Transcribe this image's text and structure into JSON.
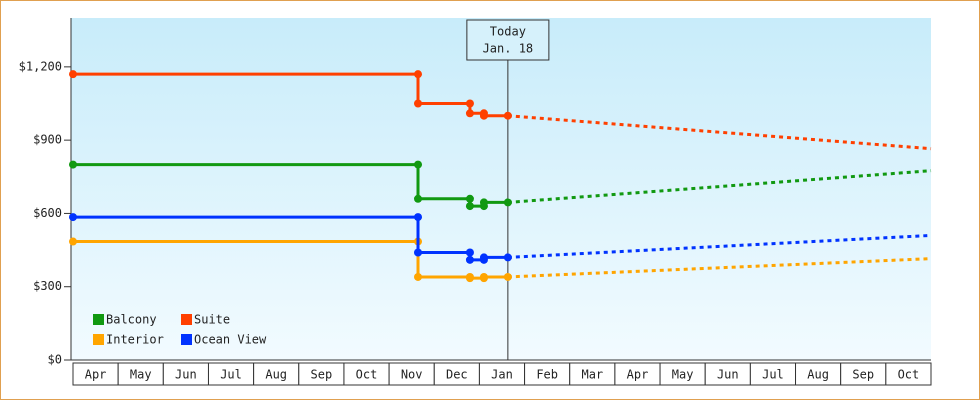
{
  "chart_data": {
    "type": "step-line",
    "x_categories": [
      "Apr",
      "May",
      "Jun",
      "Jul",
      "Aug",
      "Sep",
      "Oct",
      "Nov",
      "Dec",
      "Jan",
      "Feb",
      "Mar",
      "Apr",
      "May",
      "Jun",
      "Jul",
      "Aug",
      "Sep",
      "Oct"
    ],
    "xlim": [
      0,
      19
    ],
    "ylim": [
      0,
      1400
    ],
    "yticks": [
      {
        "value": 0,
        "label": "$0"
      },
      {
        "value": 300,
        "label": "$300"
      },
      {
        "value": 600,
        "label": "$600"
      },
      {
        "value": 900,
        "label": "$900"
      },
      {
        "value": 1200,
        "label": "$1,200"
      }
    ],
    "today": {
      "x": 9.63,
      "label": [
        "Today",
        "Jan. 18"
      ]
    },
    "series": [
      {
        "name": "Balcony",
        "color": "#119911",
        "x": [
          0,
          7.64,
          7.64,
          8.79,
          8.79,
          9.1,
          9.1,
          9.63
        ],
        "values": [
          800,
          800,
          660,
          660,
          630,
          630,
          645,
          645
        ],
        "forecast": {
          "x": [
            9.63,
            19
          ],
          "values": [
            645,
            775
          ]
        }
      },
      {
        "name": "Suite",
        "color": "#ff4000",
        "x": [
          0,
          7.64,
          7.64,
          8.79,
          8.79,
          9.1,
          9.1,
          9.63
        ],
        "values": [
          1170,
          1170,
          1050,
          1050,
          1010,
          1010,
          1000,
          1000
        ],
        "forecast": {
          "x": [
            9.63,
            19
          ],
          "values": [
            1000,
            865
          ]
        }
      },
      {
        "name": "Interior",
        "color": "#ffa500",
        "x": [
          0,
          7.64,
          7.64,
          8.79,
          8.79,
          9.1,
          9.1,
          9.63
        ],
        "values": [
          485,
          485,
          340,
          340,
          335,
          335,
          340,
          340
        ],
        "forecast": {
          "x": [
            9.63,
            19
          ],
          "values": [
            340,
            415
          ]
        }
      },
      {
        "name": "Ocean View",
        "color": "#0033ff",
        "x": [
          0,
          7.64,
          7.64,
          8.79,
          8.79,
          9.1,
          9.1,
          9.63
        ],
        "values": [
          585,
          585,
          440,
          440,
          410,
          410,
          420,
          420
        ],
        "forecast": {
          "x": [
            9.63,
            19
          ],
          "values": [
            420,
            510
          ]
        }
      }
    ]
  }
}
